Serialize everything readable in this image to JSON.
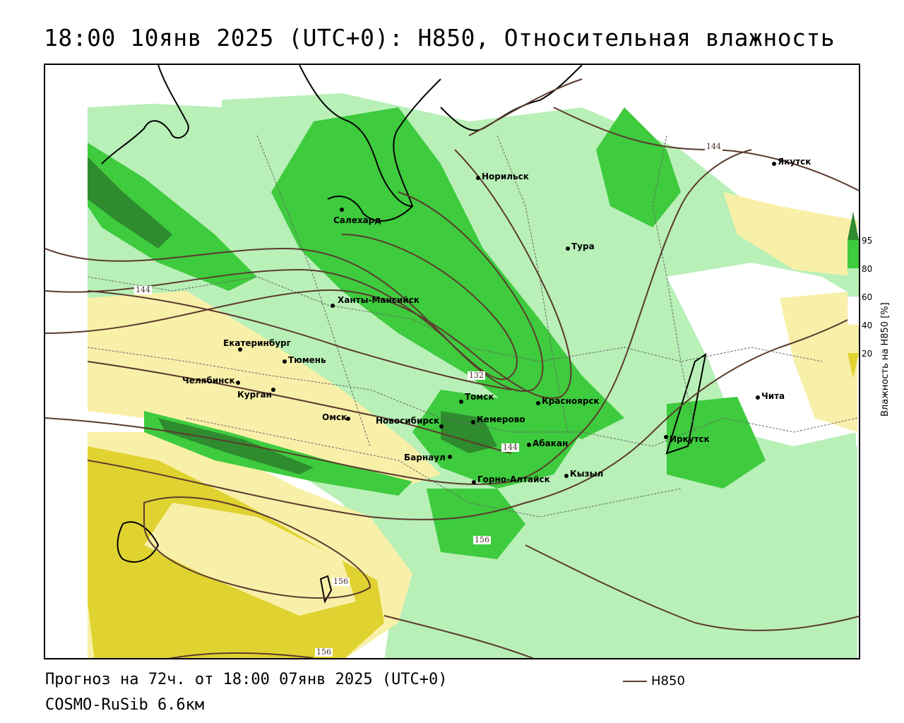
{
  "title": "18:00 10янв 2025 (UTC+0): H850, Относительная влажность",
  "footer": {
    "forecast": "Прогноз на 72ч. от 18:00 07янв 2025 (UTC+0)",
    "model": "COSMO-RuSib 6.6км",
    "line_legend": "H850"
  },
  "legend": {
    "axis_title": "Влажность на H850 [%]",
    "ticks": [
      "95",
      "80",
      "60",
      "40",
      "20"
    ],
    "colors": {
      "95+": "#2e8b2e",
      "80-95": "#3ecb3e",
      "60-80": "#b8f0b8",
      "40-60": "#ffffff",
      "20-40": "#f8f0a8",
      "<20": "#e0d230"
    }
  },
  "contour_labels": [
    "144",
    "132",
    "144",
    "144",
    "156",
    "156",
    "156"
  ],
  "cities": [
    {
      "name": "Норильск"
    },
    {
      "name": "Якутск"
    },
    {
      "name": "Салехард"
    },
    {
      "name": "Тура"
    },
    {
      "name": "Ханты-Мансийск"
    },
    {
      "name": "Екатеринбург"
    },
    {
      "name": "Тюмень"
    },
    {
      "name": "Челябинск"
    },
    {
      "name": "Курган"
    },
    {
      "name": "Омск"
    },
    {
      "name": "Новосибирск"
    },
    {
      "name": "Томск"
    },
    {
      "name": "Кемерово"
    },
    {
      "name": "Красноярск"
    },
    {
      "name": "Барнаул"
    },
    {
      "name": "Абакан"
    },
    {
      "name": "Горно-Алтайск"
    },
    {
      "name": "Кызыл"
    },
    {
      "name": "Иркутск"
    },
    {
      "name": "Чита"
    }
  ]
}
